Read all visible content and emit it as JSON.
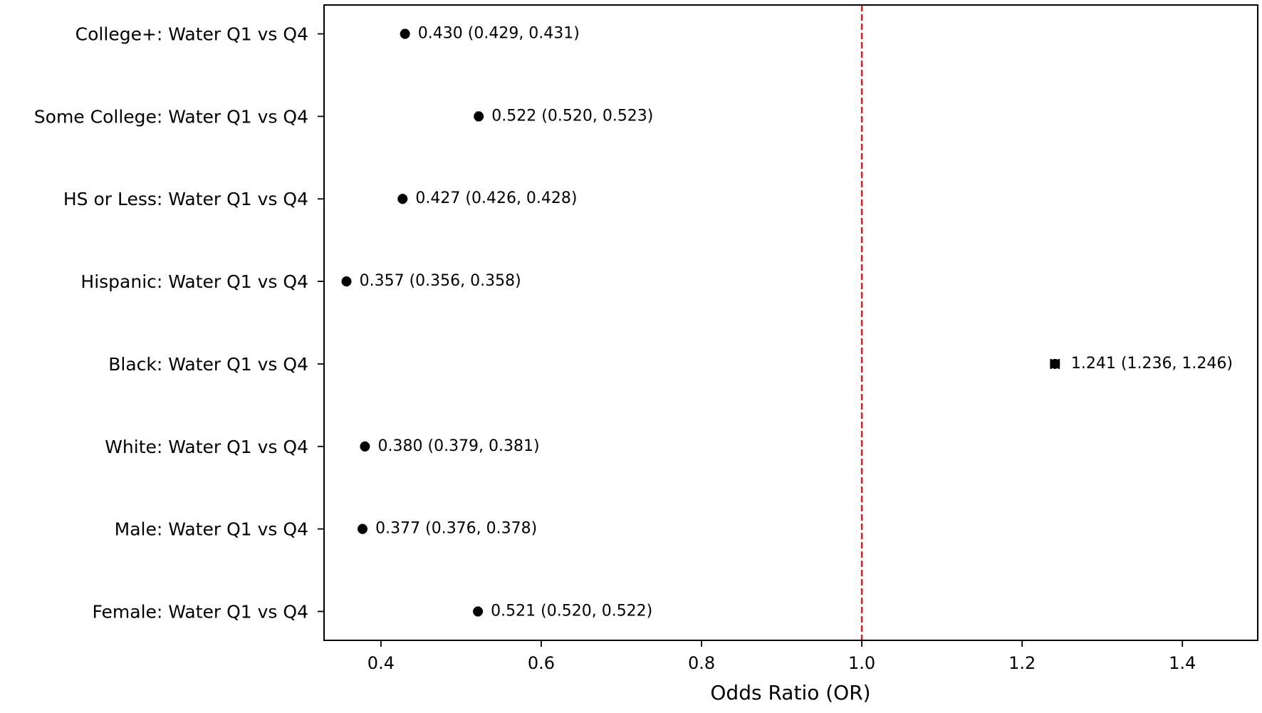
{
  "chart_data": {
    "type": "scatter",
    "subtype": "forest-plot",
    "title": "",
    "xlabel": "Odds Ratio (OR)",
    "ylabel": "",
    "xlim": [
      0.329,
      1.494
    ],
    "xticks": [
      0.4,
      0.6,
      0.8,
      1.0,
      1.2,
      1.4
    ],
    "xtick_labels": [
      "0.4",
      "0.6",
      "0.8",
      "1.0",
      "1.2",
      "1.4"
    ],
    "reference_line": {
      "value": 1.0,
      "color": "#e41a1c",
      "style": "dashed"
    },
    "point_color": "#000000",
    "rows": [
      {
        "label": "College+: Water Q1 vs Q4",
        "or": 0.43,
        "lo": 0.429,
        "hi": 0.431,
        "annotation": "0.430 (0.429, 0.431)"
      },
      {
        "label": "Some College: Water Q1 vs Q4",
        "or": 0.522,
        "lo": 0.52,
        "hi": 0.523,
        "annotation": "0.522 (0.520, 0.523)"
      },
      {
        "label": "HS or Less: Water Q1 vs Q4",
        "or": 0.427,
        "lo": 0.426,
        "hi": 0.428,
        "annotation": "0.427 (0.426, 0.428)"
      },
      {
        "label": "Hispanic: Water Q1 vs Q4",
        "or": 0.357,
        "lo": 0.356,
        "hi": 0.358,
        "annotation": "0.357 (0.356, 0.358)"
      },
      {
        "label": "Black: Water Q1 vs Q4",
        "or": 1.241,
        "lo": 1.236,
        "hi": 1.246,
        "annotation": "1.241 (1.236, 1.246)"
      },
      {
        "label": "White: Water Q1 vs Q4",
        "or": 0.38,
        "lo": 0.379,
        "hi": 0.381,
        "annotation": "0.380 (0.379, 0.381)"
      },
      {
        "label": "Male: Water Q1 vs Q4",
        "or": 0.377,
        "lo": 0.376,
        "hi": 0.378,
        "annotation": "0.377 (0.376, 0.378)"
      },
      {
        "label": "Female: Water Q1 vs Q4",
        "or": 0.521,
        "lo": 0.52,
        "hi": 0.522,
        "annotation": "0.521 (0.520, 0.522)"
      }
    ]
  }
}
